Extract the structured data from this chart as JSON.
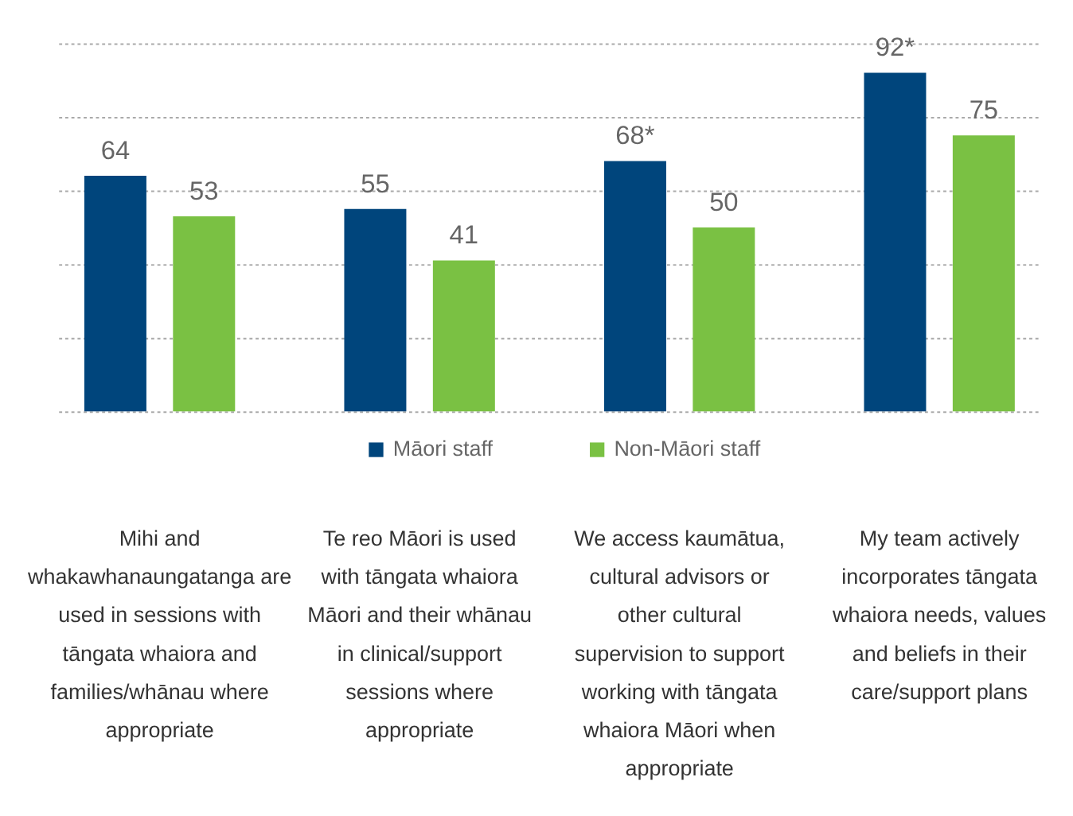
{
  "chart_data": {
    "type": "bar",
    "categories": [
      "Mihi and whakawhanaungatanga are used in sessions with tāngata whaiora and families/whānau where appropriate",
      "Te reo Māori is used with tāngata whaiora Māori and their whānau in clinical/support sessions where appropriate",
      "We access kaumātua, cultural advisors or other cultural supervision to support working with tāngata whaiora Māori when appropriate",
      "My team actively incorporates tāngata whaiora needs, values and beliefs in their care/support plans"
    ],
    "series": [
      {
        "name": "Māori staff",
        "color": "#00457c",
        "values": [
          64,
          55,
          68,
          92
        ],
        "value_labels": [
          "64",
          "55",
          "68*",
          "92*"
        ]
      },
      {
        "name": "Non-Māori staff",
        "color": "#7ac143",
        "values": [
          53,
          41,
          50,
          75
        ],
        "value_labels": [
          "53",
          "41",
          "50",
          "75"
        ]
      }
    ],
    "ylim": [
      0,
      100
    ],
    "yticks": [
      0,
      20,
      40,
      60,
      80,
      100
    ],
    "tick_labels": "x",
    "grid": "y",
    "legend": "bottom"
  }
}
